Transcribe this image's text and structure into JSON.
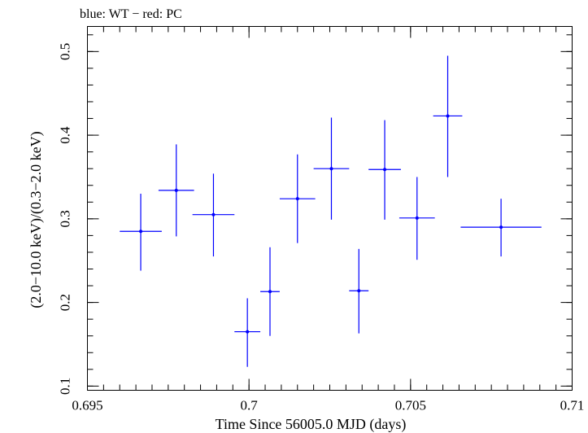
{
  "chart_data": {
    "type": "scatter",
    "title": "blue: WT − red: PC",
    "xlabel": "Time Since 56005.0 MJD (days)",
    "ylabel": "(2.0−10.0 keV)/(0.3−2.0 keV)",
    "xlim": [
      0.695,
      0.71
    ],
    "ylim": [
      0.095,
      0.53
    ],
    "x_ticks": [
      0.695,
      0.7,
      0.705,
      0.71
    ],
    "x_tick_labels": [
      "0.695",
      "0.7",
      "0.705",
      "0.71"
    ],
    "y_ticks": [
      0.1,
      0.2,
      0.3,
      0.4,
      0.5
    ],
    "y_tick_labels": [
      "0.1",
      "0.2",
      "0.3",
      "0.4",
      "0.5"
    ],
    "grid": false,
    "series": [
      {
        "color": "#0000ff",
        "points": [
          {
            "x": 0.69665,
            "xerr_lo": 0.00065,
            "xerr_hi": 0.00065,
            "y": 0.285,
            "yerr_lo": 0.047,
            "yerr_hi": 0.045
          },
          {
            "x": 0.69775,
            "xerr_lo": 0.00055,
            "xerr_hi": 0.00055,
            "y": 0.334,
            "yerr_lo": 0.055,
            "yerr_hi": 0.055
          },
          {
            "x": 0.6989,
            "xerr_lo": 0.00065,
            "xerr_hi": 0.00065,
            "y": 0.305,
            "yerr_lo": 0.05,
            "yerr_hi": 0.049
          },
          {
            "x": 0.69995,
            "xerr_lo": 0.0004,
            "xerr_hi": 0.0004,
            "y": 0.165,
            "yerr_lo": 0.042,
            "yerr_hi": 0.04
          },
          {
            "x": 0.70065,
            "xerr_lo": 0.0003,
            "xerr_hi": 0.0003,
            "y": 0.213,
            "yerr_lo": 0.053,
            "yerr_hi": 0.053
          },
          {
            "x": 0.7015,
            "xerr_lo": 0.00055,
            "xerr_hi": 0.00055,
            "y": 0.324,
            "yerr_lo": 0.053,
            "yerr_hi": 0.053
          },
          {
            "x": 0.70255,
            "xerr_lo": 0.00055,
            "xerr_hi": 0.00055,
            "y": 0.36,
            "yerr_lo": 0.061,
            "yerr_hi": 0.061
          },
          {
            "x": 0.7034,
            "xerr_lo": 0.0003,
            "xerr_hi": 0.0003,
            "y": 0.214,
            "yerr_lo": 0.051,
            "yerr_hi": 0.05
          },
          {
            "x": 0.7042,
            "xerr_lo": 0.0005,
            "xerr_hi": 0.0005,
            "y": 0.359,
            "yerr_lo": 0.06,
            "yerr_hi": 0.059
          },
          {
            "x": 0.7052,
            "xerr_lo": 0.00055,
            "xerr_hi": 0.00055,
            "y": 0.301,
            "yerr_lo": 0.05,
            "yerr_hi": 0.049
          },
          {
            "x": 0.70615,
            "xerr_lo": 0.00045,
            "xerr_hi": 0.00045,
            "y": 0.423,
            "yerr_lo": 0.073,
            "yerr_hi": 0.072
          },
          {
            "x": 0.7078,
            "xerr_lo": 0.00125,
            "xerr_hi": 0.00125,
            "y": 0.29,
            "yerr_lo": 0.035,
            "yerr_hi": 0.034
          }
        ]
      }
    ]
  }
}
